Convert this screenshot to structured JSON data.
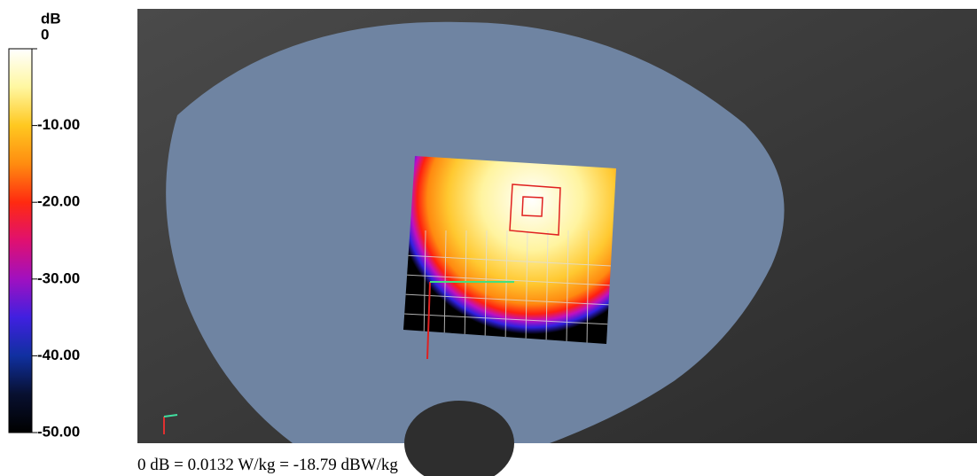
{
  "colorbar": {
    "unit": "dB",
    "labels": [
      "0",
      "-10.00",
      "-20.00",
      "-30.00",
      "-40.00",
      "-50.00"
    ]
  },
  "caption": "0 dB = 0.0132 W/kg = -18.79 dBW/kg"
}
